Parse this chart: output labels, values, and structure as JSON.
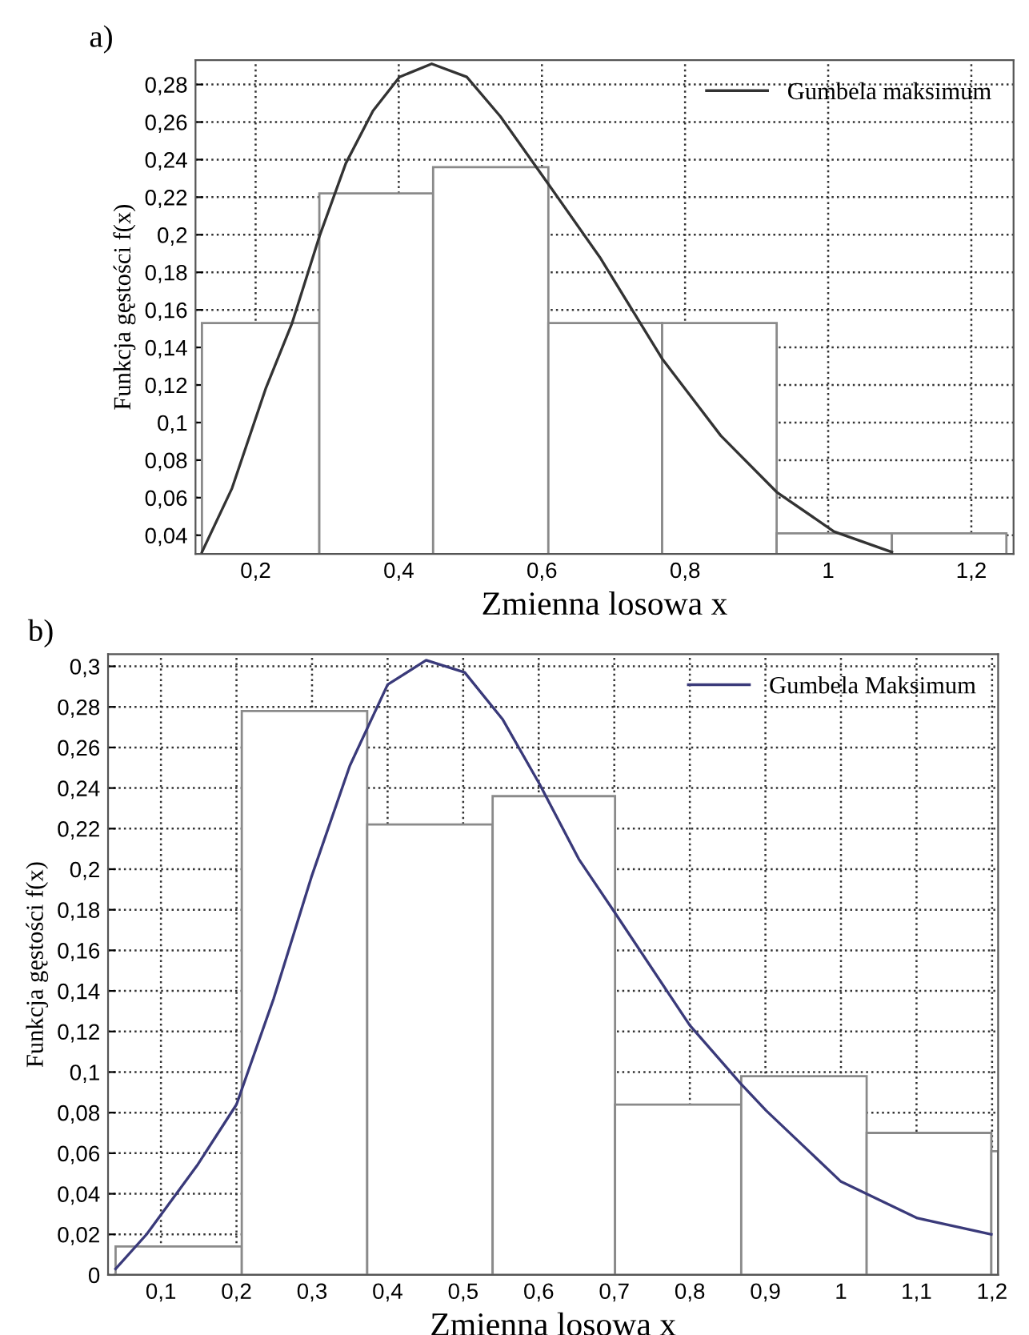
{
  "chart_data": [
    {
      "type": "histogram",
      "title": "a)",
      "xlabel": "Zmienna losowa x",
      "ylabel": "Funkcja gęstości f(x)",
      "series": [
        {
          "color": "#ffffff",
          "bins": [
            0.125,
            0.289,
            0.448,
            0.609,
            0.768,
            0.928,
            1.089,
            1.249
          ],
          "values": [
            0.153,
            0.222,
            0.236,
            0.153,
            0.153,
            0.041,
            0.041
          ]
        },
        {
          "type": "line",
          "name": "Gumbela maksimum",
          "color": "#333333",
          "x": [
            0.125,
            0.167,
            0.214,
            0.251,
            0.289,
            0.326,
            0.364,
            0.401,
            0.446,
            0.495,
            0.542,
            0.609,
            0.681,
            0.768,
            0.85,
            0.928,
            1.008,
            1.089
          ],
          "values": [
            0.031,
            0.065,
            0.118,
            0.153,
            0.199,
            0.238,
            0.266,
            0.284,
            0.291,
            0.284,
            0.263,
            0.227,
            0.188,
            0.134,
            0.093,
            0.063,
            0.042,
            0.031
          ]
        }
      ],
      "xlim": [
        0.116,
        1.259
      ],
      "ylim": [
        0.03,
        0.293
      ],
      "xticks": [
        {
          "value": 0.2,
          "label": "0,2"
        },
        {
          "value": 0.4,
          "label": "0,4"
        },
        {
          "value": 0.6,
          "label": "0,6"
        },
        {
          "value": 0.8,
          "label": "0,8"
        },
        1,
        {
          "value": 1.2,
          "label": "1,2"
        }
      ],
      "yticks": [
        {
          "value": 0.04,
          "label": "0,04"
        },
        {
          "value": 0.06,
          "label": "0,06"
        },
        {
          "value": 0.08,
          "label": "0,08"
        },
        {
          "value": 0.1,
          "label": "0,1"
        },
        {
          "value": 0.12,
          "label": "0,12"
        },
        {
          "value": 0.14,
          "label": "0,14"
        },
        {
          "value": 0.16,
          "label": "0,16"
        },
        {
          "value": 0.18,
          "label": "0,18"
        },
        {
          "value": 0.2,
          "label": "0,2"
        },
        {
          "value": 0.22,
          "label": "0,22"
        },
        {
          "value": 0.24,
          "label": "0,24"
        },
        {
          "value": 0.26,
          "label": "0,26"
        },
        {
          "value": 0.28,
          "label": "0,28"
        }
      ],
      "grid": true,
      "legend": "top right"
    },
    {
      "type": "histogram",
      "title": "b)",
      "xlabel": "Zmienna losowa x",
      "ylabel": "Funkcja gęstości f(x)",
      "series": [
        {
          "color": "#ffffff",
          "bins": [
            0.04,
            0.207,
            0.373,
            0.539,
            0.701,
            0.868,
            1.034,
            1.199,
            1.208
          ],
          "values": [
            0.014,
            0.278,
            0.222,
            0.236,
            0.084,
            0.098,
            0.07,
            0.061
          ]
        },
        {
          "type": "line",
          "name": "Gumbela Maksimum",
          "color": "#3a3a7a",
          "x": [
            0.04,
            0.081,
            0.148,
            0.2,
            0.249,
            0.299,
            0.35,
            0.4,
            0.451,
            0.502,
            0.552,
            0.601,
            0.653,
            0.7,
            0.8,
            0.868,
            0.901,
            1.0,
            1.101,
            1.199
          ],
          "values": [
            0.003,
            0.02,
            0.054,
            0.084,
            0.136,
            0.196,
            0.251,
            0.291,
            0.303,
            0.297,
            0.274,
            0.242,
            0.205,
            0.179,
            0.123,
            0.094,
            0.081,
            0.046,
            0.028,
            0.02
          ]
        }
      ],
      "xlim": [
        0.03,
        1.208
      ],
      "ylim": [
        0,
        0.306
      ],
      "xticks": [
        {
          "value": 0.1,
          "label": "0,1"
        },
        {
          "value": 0.2,
          "label": "0,2"
        },
        {
          "value": 0.3,
          "label": "0,3"
        },
        {
          "value": 0.4,
          "label": "0,4"
        },
        {
          "value": 0.5,
          "label": "0,5"
        },
        {
          "value": 0.6,
          "label": "0,6"
        },
        {
          "value": 0.7,
          "label": "0,7"
        },
        {
          "value": 0.8,
          "label": "0,8"
        },
        {
          "value": 0.9,
          "label": "0,9"
        },
        1,
        {
          "value": 1.1,
          "label": "1,1"
        },
        {
          "value": 1.2,
          "label": "1,2"
        }
      ],
      "yticks": [
        0,
        {
          "value": 0.02,
          "label": "0,02"
        },
        {
          "value": 0.04,
          "label": "0,04"
        },
        {
          "value": 0.06,
          "label": "0,06"
        },
        {
          "value": 0.08,
          "label": "0,08"
        },
        {
          "value": 0.1,
          "label": "0,1"
        },
        {
          "value": 0.12,
          "label": "0,12"
        },
        {
          "value": 0.14,
          "label": "0,14"
        },
        {
          "value": 0.16,
          "label": "0,16"
        },
        {
          "value": 0.18,
          "label": "0,18"
        },
        {
          "value": 0.2,
          "label": "0,2"
        },
        {
          "value": 0.22,
          "label": "0,22"
        },
        {
          "value": 0.24,
          "label": "0,24"
        },
        {
          "value": 0.26,
          "label": "0,26"
        },
        {
          "value": 0.28,
          "label": "0,28"
        },
        {
          "value": 0.3,
          "label": "0,3"
        }
      ],
      "grid": true,
      "legend": "top right"
    }
  ]
}
